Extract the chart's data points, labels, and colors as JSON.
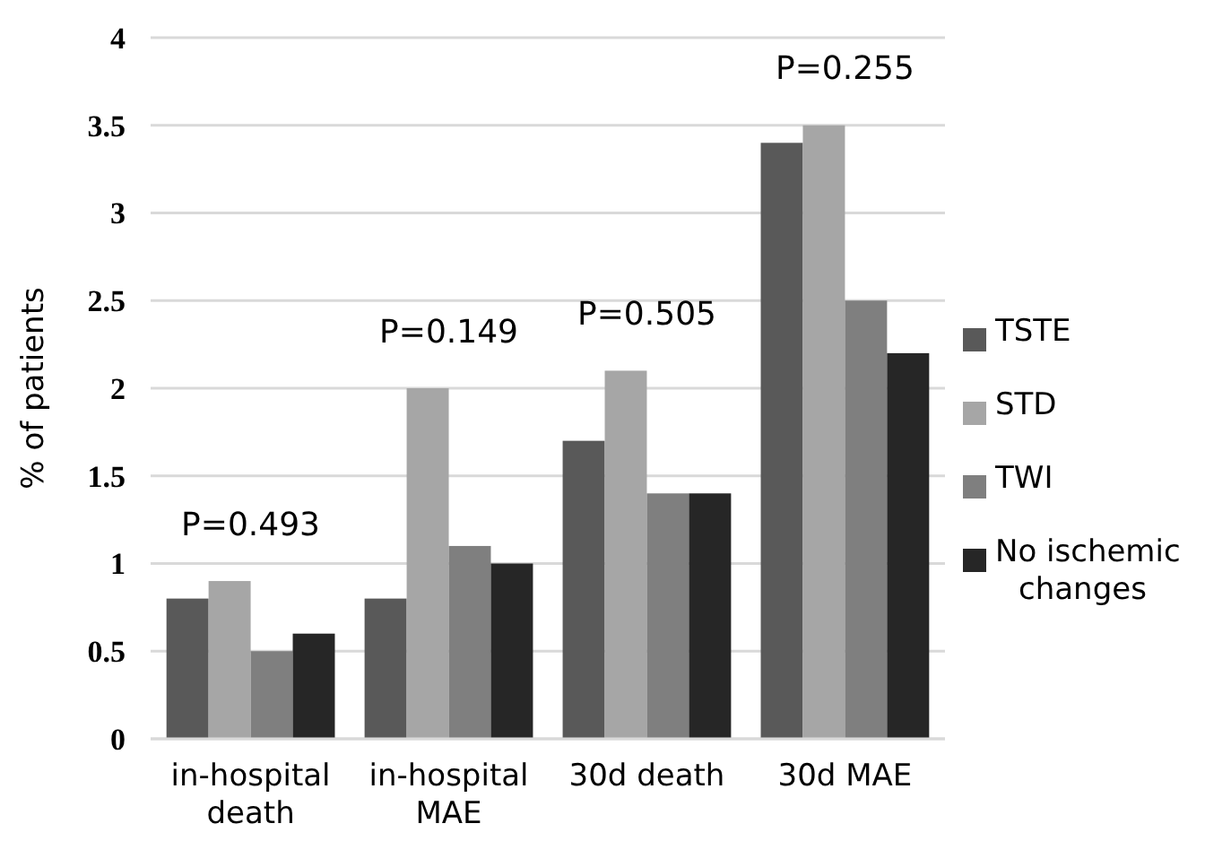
{
  "chart_data": {
    "type": "bar",
    "ylabel": "% of patients",
    "categories": [
      "in-hospital death",
      "in-hospital MAE",
      "30d death",
      "30d MAE"
    ],
    "series": [
      {
        "name": "TSTE",
        "color": "#595959",
        "values": [
          0.8,
          0.8,
          1.7,
          3.4
        ]
      },
      {
        "name": "STD",
        "color": "#a6a6a6",
        "values": [
          0.9,
          2.0,
          2.1,
          3.5
        ]
      },
      {
        "name": "TWI",
        "color": "#7f7f7f",
        "values": [
          0.5,
          1.1,
          1.4,
          2.5
        ]
      },
      {
        "name": "No ischemic changes",
        "color": "#262626",
        "values": [
          0.6,
          1.0,
          1.4,
          2.2
        ]
      }
    ],
    "ylim": [
      0,
      4
    ],
    "yticks": [
      0,
      0.5,
      1,
      1.5,
      2,
      2.5,
      3,
      3.5,
      4
    ],
    "grid": "y",
    "legend": "right",
    "annotations": [
      "P=0.493",
      "P=0.149",
      "P=0.505",
      "P=0.255"
    ]
  }
}
